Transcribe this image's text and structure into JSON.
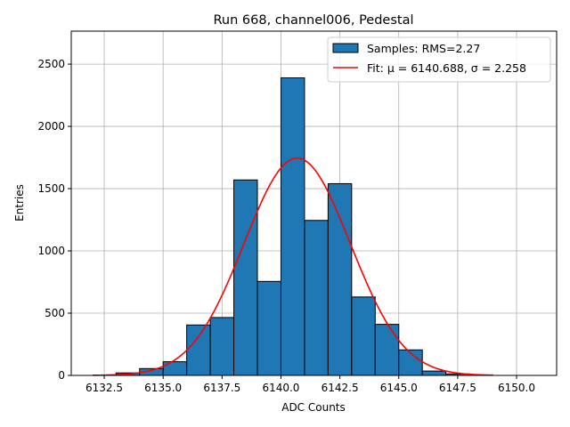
{
  "chart_data": {
    "type": "bar",
    "title": "Run 668, channel006, Pedestal",
    "xlabel": "ADC Counts",
    "ylabel": "Entries",
    "xlim": [
      6131.1,
      6151.7
    ],
    "ylim": [
      0,
      2765
    ],
    "grid": true,
    "legend_placement": "top-right",
    "xticks": [
      "6132.5",
      "6135.0",
      "6137.5",
      "6140.0",
      "6142.5",
      "6145.0",
      "6147.5",
      "6150.0"
    ],
    "yticks": [
      "0",
      "500",
      "1000",
      "1500",
      "2000",
      "2500"
    ],
    "bin_width": 1,
    "bin_edges_start": [
      6133,
      6134,
      6135,
      6136,
      6137,
      6138,
      6139,
      6140,
      6141,
      6142,
      6143,
      6144,
      6145,
      6146,
      6147
    ],
    "values": [
      20,
      55,
      110,
      405,
      465,
      1570,
      755,
      2390,
      1245,
      1540,
      630,
      410,
      205,
      35,
      12
    ],
    "fit": {
      "mu": 6140.688,
      "sigma": 2.258,
      "peak": 1745,
      "range": [
        6132,
        6149
      ]
    },
    "colors": {
      "bars": "#1f77b4",
      "fit": "#ff0000"
    },
    "legend": [
      {
        "label": "Samples: RMS=2.27",
        "kind": "patch"
      },
      {
        "label": "Fit: μ = 6140.688, σ = 2.258",
        "kind": "line"
      }
    ]
  }
}
